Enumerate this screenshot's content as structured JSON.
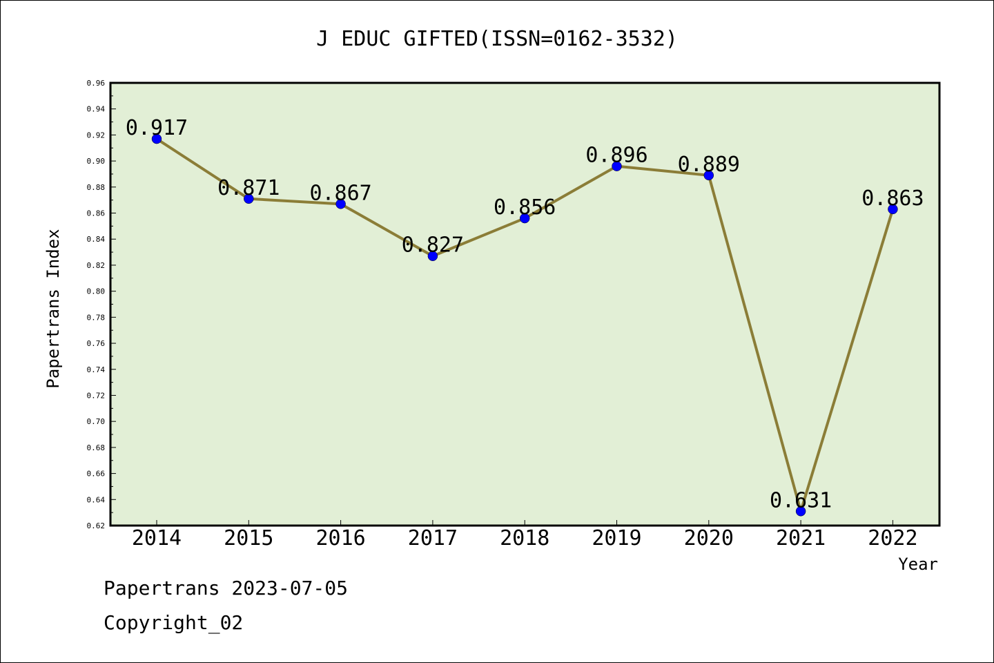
{
  "chart_data": {
    "type": "line",
    "title": "J EDUC GIFTED(ISSN=0162-3532)",
    "xlabel": "Year",
    "ylabel": "Papertrans Index",
    "categories": [
      "2014",
      "2015",
      "2016",
      "2017",
      "2018",
      "2019",
      "2020",
      "2021",
      "2022"
    ],
    "values": [
      0.917,
      0.871,
      0.867,
      0.827,
      0.856,
      0.896,
      0.889,
      0.631,
      0.863
    ],
    "data_labels": [
      "0.917",
      "0.871",
      "0.867",
      "0.827",
      "0.856",
      "0.896",
      "0.889",
      "0.631",
      "0.863"
    ],
    "ylim": [
      0.62,
      0.96
    ],
    "y_ticks": [
      "0.62",
      "0.64",
      "0.66",
      "0.68",
      "0.70",
      "0.72",
      "0.74",
      "0.76",
      "0.78",
      "0.80",
      "0.82",
      "0.84",
      "0.86",
      "0.88",
      "0.90",
      "0.92",
      "0.94",
      "0.96"
    ],
    "grid": false,
    "legend": "none",
    "colors": {
      "plot_background": "#e2efd6",
      "line": "#8b7d37",
      "marker": "#0000ff"
    }
  },
  "footer": {
    "line1": "Papertrans 2023-07-05",
    "line2": "Copyright_02"
  }
}
